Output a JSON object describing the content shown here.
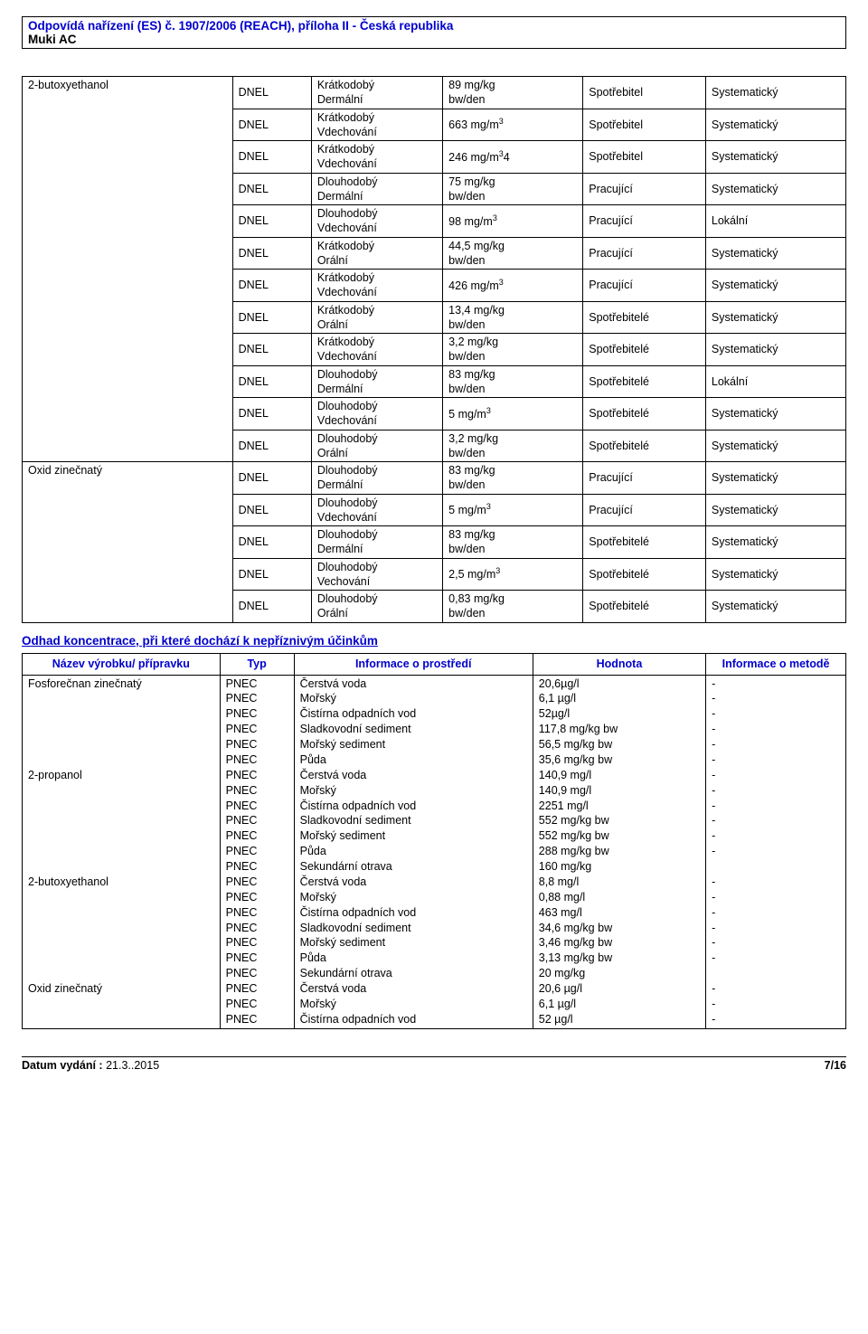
{
  "header": {
    "line1": "Odpovídá nařízení (ES) č. 1907/2006 (REACH), příloha II - Česká republika",
    "line2": "Muki AC"
  },
  "table1": {
    "substances": [
      {
        "name": "2-butoxyethanol",
        "rows": [
          {
            "col1": "DNEL",
            "col2": "Krátkodobý\nDermální",
            "col3": "89 mg/kg\nbw/den",
            "col4": "Spotřebitel",
            "col5": "Systematický"
          },
          {
            "col1": "DNEL",
            "col2": "Krátkodobý\nVdechování",
            "col3": "663 mg/m³",
            "col4": "Spotřebitel",
            "col5": "Systematický"
          },
          {
            "col1": "DNEL",
            "col2": "Krátkodobý\nVdechování",
            "col3": "246 mg/m³4",
            "col4": "Spotřebitel",
            "col5": "Systematický"
          },
          {
            "col1": "DNEL",
            "col2": "Dlouhodobý\nDermální",
            "col3": "75 mg/kg\nbw/den",
            "col4": "Pracující",
            "col5": "Systematický"
          },
          {
            "col1": "DNEL",
            "col2": "Dlouhodobý\nVdechování",
            "col3": "98 mg/m³",
            "col4": "Pracující",
            "col5": "Lokální"
          },
          {
            "col1": "DNEL",
            "col2": "Krátkodobý\nOrální",
            "col3": "44,5 mg/kg\nbw/den",
            "col4": "Pracující",
            "col5": "Systematický"
          },
          {
            "col1": "DNEL",
            "col2": "Krátkodobý\nVdechování",
            "col3": "426 mg/m³",
            "col4": "Pracující",
            "col5": "Systematický"
          },
          {
            "col1": "DNEL",
            "col2": "Krátkodobý\nOrální",
            "col3": "13,4 mg/kg\nbw/den",
            "col4": "Spotřebitelé",
            "col5": "Systematický"
          },
          {
            "col1": "DNEL",
            "col2": "Krátkodobý\nVdechování",
            "col3": "3,2 mg/kg\nbw/den",
            "col4": "Spotřebitelé",
            "col5": "Systematický"
          },
          {
            "col1": "DNEL",
            "col2": "Dlouhodobý\nDermální",
            "col3": "83 mg/kg\nbw/den",
            "col4": "Spotřebitelé",
            "col5": "Lokální"
          },
          {
            "col1": "DNEL",
            "col2": "Dlouhodobý\nVdechování",
            "col3": "5 mg/m³",
            "col4": "Spotřebitelé",
            "col5": "Systematický"
          },
          {
            "col1": "DNEL",
            "col2": "Dlouhodobý\nOrální",
            "col3": "3,2 mg/kg\nbw/den",
            "col4": "Spotřebitelé",
            "col5": "Systematický"
          }
        ]
      },
      {
        "name": "Oxid zinečnatý",
        "rows": [
          {
            "col1": "DNEL",
            "col2": "Dlouhodobý\nDermální",
            "col3": "83 mg/kg\nbw/den",
            "col4": "Pracující",
            "col5": "Systematický"
          },
          {
            "col1": "DNEL",
            "col2": "Dlouhodobý\nVdechování",
            "col3": "5 mg/m³",
            "col4": "Pracující",
            "col5": "Systematický"
          },
          {
            "col1": "DNEL",
            "col2": "Dlouhodobý\nDermální",
            "col3": "83 mg/kg\nbw/den",
            "col4": "Spotřebitelé",
            "col5": "Systematický"
          },
          {
            "col1": "DNEL",
            "col2": "Dlouhodobý\nVechování",
            "col3": "2,5 mg/m³",
            "col4": "Spotřebitelé",
            "col5": "Systematický"
          },
          {
            "col1": "DNEL",
            "col2": "Dlouhodobý\nOrální",
            "col3": "0,83 mg/kg\nbw/den",
            "col4": "Spotřebitelé",
            "col5": "Systematický"
          }
        ]
      }
    ]
  },
  "section2_title": "Odhad koncentrace, při které dochází k nepříznivým účinkům",
  "pnec_headers": {
    "c0": "Název výrobku/ přípravku",
    "c1": "Typ",
    "c2": "Informace o prostředí",
    "c3": "Hodnota",
    "c4": "Informace o metodě"
  },
  "pnec": {
    "substances": [
      {
        "name": "Fosforečnan zinečnatý",
        "rows": [
          {
            "c1": "PNEC",
            "c2": "Čerstvá voda",
            "c3": "20,6µg/l",
            "c4": "-"
          },
          {
            "c1": "PNEC",
            "c2": "Mořský",
            "c3": "6,1 µg/l",
            "c4": "-"
          },
          {
            "c1": "PNEC",
            "c2": "Čistírna odpadních vod",
            "c3": "52µg/l",
            "c4": "-"
          },
          {
            "c1": "PNEC",
            "c2": "Sladkovodní sediment",
            "c3": "117,8 mg/kg bw",
            "c4": "-"
          },
          {
            "c1": "PNEC",
            "c2": "Mořský sediment",
            "c3": "56,5 mg/kg bw",
            "c4": "-"
          },
          {
            "c1": "PNEC",
            "c2": "Půda",
            "c3": "35,6 mg/kg bw",
            "c4": "-"
          }
        ]
      },
      {
        "name": "2-propanol",
        "rows": [
          {
            "c1": "PNEC",
            "c2": "Čerstvá voda",
            "c3": "140,9 mg/l",
            "c4": "-"
          },
          {
            "c1": "PNEC",
            "c2": "Mořský",
            "c3": "140,9 mg/l",
            "c4": "-"
          },
          {
            "c1": "PNEC",
            "c2": "Čistírna odpadních vod",
            "c3": "2251 mg/l",
            "c4": "-"
          },
          {
            "c1": "PNEC",
            "c2": "Sladkovodní sediment",
            "c3": "552 mg/kg bw",
            "c4": "-"
          },
          {
            "c1": "PNEC",
            "c2": "Mořský sediment",
            "c3": "552 mg/kg bw",
            "c4": "-"
          },
          {
            "c1": "PNEC",
            "c2": "Půda",
            "c3": "288 mg/kg bw",
            "c4": "-"
          },
          {
            "c1": "PNEC",
            "c2": "Sekundární otrava",
            "c3": "160 mg/kg",
            "c4": ""
          }
        ]
      },
      {
        "name": "2-butoxyethanol",
        "rows": [
          {
            "c1": "PNEC",
            "c2": "Čerstvá voda",
            "c3": "8,8 mg/l",
            "c4": "-"
          },
          {
            "c1": "PNEC",
            "c2": "Mořský",
            "c3": "0,88 mg/l",
            "c4": "-"
          },
          {
            "c1": "PNEC",
            "c2": "Čistírna odpadních vod",
            "c3": "463 mg/l",
            "c4": "-"
          },
          {
            "c1": "PNEC",
            "c2": "Sladkovodní sediment",
            "c3": "34,6 mg/kg bw",
            "c4": "-"
          },
          {
            "c1": "PNEC",
            "c2": "Mořský sediment",
            "c3": "3,46 mg/kg bw",
            "c4": "-"
          },
          {
            "c1": "PNEC",
            "c2": "Půda",
            "c3": "3,13 mg/kg bw",
            "c4": "-"
          },
          {
            "c1": "PNEC",
            "c2": "Sekundární otrava",
            "c3": "20 mg/kg",
            "c4": ""
          }
        ]
      },
      {
        "name": "Oxid zinečnatý",
        "rows": [
          {
            "c1": "PNEC",
            "c2": "Čerstvá voda",
            "c3": "20,6 µg/l",
            "c4": "-"
          },
          {
            "c1": "PNEC",
            "c2": "Mořský",
            "c3": "6,1 µg/l",
            "c4": "-"
          },
          {
            "c1": "PNEC",
            "c2": "Čistírna odpadních vod",
            "c3": "52 µg/l",
            "c4": "-"
          }
        ]
      }
    ]
  },
  "footer": {
    "left_label": "Datum vydání :",
    "left_value": " 21.3..2015",
    "right": "7/16"
  }
}
